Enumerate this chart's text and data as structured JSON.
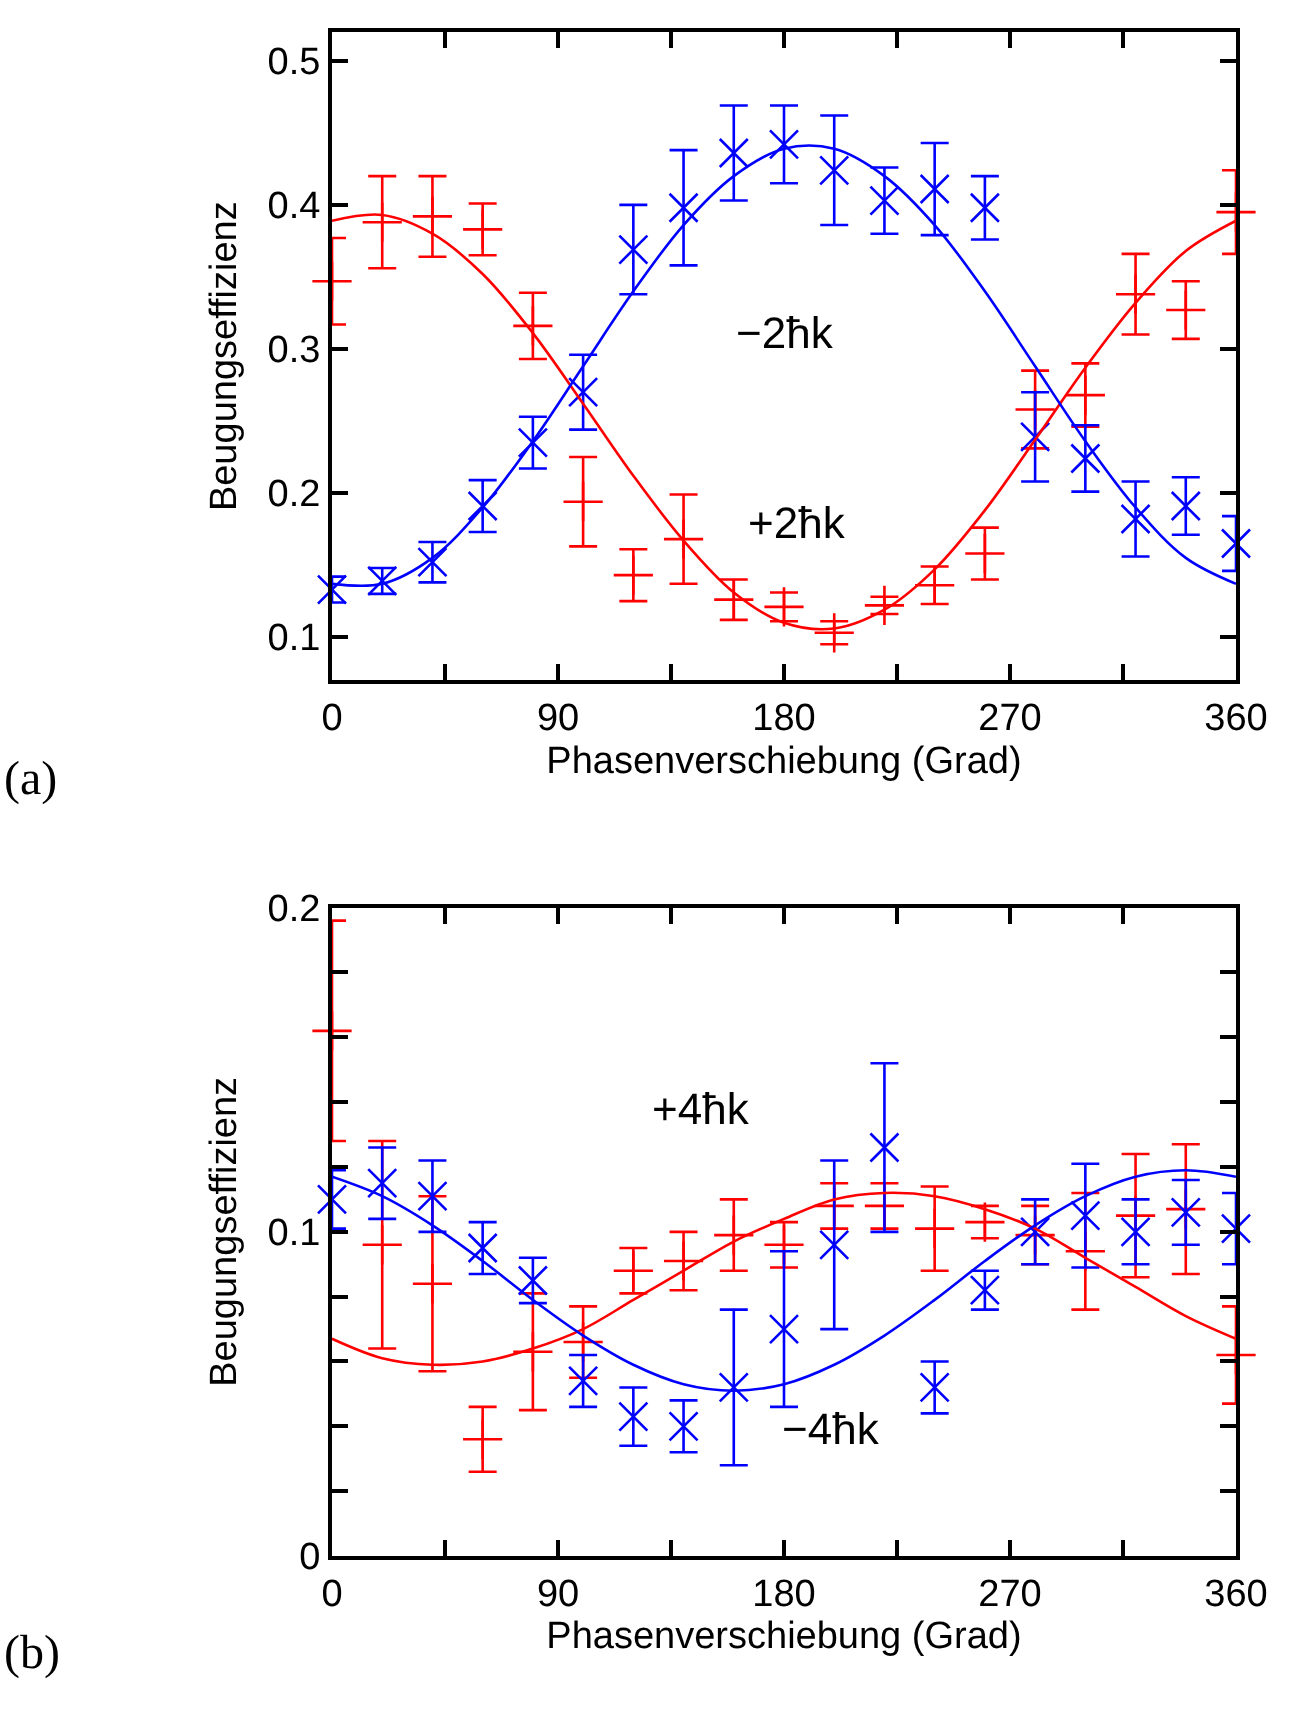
{
  "chart_data": [
    {
      "type": "scatter",
      "xlabel": "Phasenverschiebung (Grad)",
      "ylabel": "Beugungseffizienz",
      "annotations": [
        "(a)",
        "−2ħk",
        "+2ħk"
      ],
      "x": [
        0,
        20,
        40,
        60,
        80,
        100,
        120,
        140,
        160,
        180,
        200,
        220,
        240,
        260,
        280,
        300,
        320,
        340,
        360
      ],
      "xlim": [
        0,
        360
      ],
      "xticks": [
        0,
        {
          "value": 45,
          "label": null
        },
        90,
        {
          "value": 135,
          "label": null
        },
        180,
        {
          "value": 225,
          "label": null
        },
        270,
        {
          "value": 315,
          "label": null
        },
        360
      ],
      "ylim": [
        0.07,
        0.52
      ],
      "yticks": [
        0.1,
        0.2,
        0.3,
        0.4,
        0.5
      ],
      "series": [
        {
          "color": "#ff0000",
          "marker": "cross",
          "values": [
            0.347,
            0.388,
            0.392,
            0.383,
            0.316,
            0.194,
            0.143,
            0.168,
            0.126,
            0.121,
            0.103,
            0.122,
            0.136,
            0.158,
            0.258,
            0.268,
            0.338,
            0.327,
            0.395
          ],
          "errors": [
            0.03,
            0.032,
            0.028,
            0.018,
            0.023,
            0.031,
            0.018,
            0.031,
            0.014,
            0.01,
            0.008,
            0.006,
            0.013,
            0.018,
            0.027,
            0.022,
            0.028,
            0.02,
            0.029
          ]
        },
        {
          "color": "#0000ff",
          "marker": "x",
          "values": [
            0.133,
            0.139,
            0.152,
            0.191,
            0.235,
            0.27,
            0.369,
            0.398,
            0.436,
            0.442,
            0.424,
            0.403,
            0.411,
            0.398,
            0.239,
            0.224,
            0.182,
            0.191,
            0.165
          ],
          "errors": [
            0.009,
            0.009,
            0.014,
            0.018,
            0.018,
            0.026,
            0.031,
            0.04,
            0.033,
            0.027,
            0.038,
            0.023,
            0.032,
            0.022,
            0.031,
            0.023,
            0.026,
            0.02,
            0.019
          ]
        },
        {
          "type": "line",
          "color": "#ff0000",
          "marker": "none",
          "values": [
            0.389,
            0.393,
            0.38,
            0.352,
            0.311,
            0.262,
            0.212,
            0.167,
            0.131,
            0.11,
            0.106,
            0.119,
            0.147,
            0.188,
            0.237,
            0.287,
            0.332,
            0.368,
            0.389
          ]
        },
        {
          "type": "line",
          "color": "#0000ff",
          "marker": "none",
          "values": [
            0.137,
            0.137,
            0.155,
            0.19,
            0.236,
            0.288,
            0.34,
            0.386,
            0.42,
            0.439,
            0.439,
            0.42,
            0.386,
            0.34,
            0.288,
            0.236,
            0.19,
            0.155,
            0.137
          ]
        }
      ]
    },
    {
      "type": "scatter",
      "xlabel": "Phasenverschiebung (Grad)",
      "ylabel": "Beugungseffizienz",
      "annotations": [
        "(b)",
        "+4ħk",
        "−4ħk"
      ],
      "x": [
        0,
        20,
        40,
        60,
        80,
        100,
        120,
        140,
        160,
        180,
        200,
        220,
        240,
        260,
        280,
        300,
        320,
        340,
        360
      ],
      "xlim": [
        0,
        360
      ],
      "xticks": [
        0,
        {
          "value": 45,
          "label": null
        },
        90,
        {
          "value": 135,
          "label": null
        },
        180,
        {
          "value": 225,
          "label": null
        },
        270,
        {
          "value": 315,
          "label": null
        },
        360
      ],
      "ylim": [
        0,
        0.2
      ],
      "yticks": [
        0,
        {
          "value": 0.02,
          "label": null
        },
        {
          "value": 0.04,
          "label": null
        },
        {
          "value": 0.06,
          "label": null
        },
        {
          "value": 0.08,
          "label": null
        },
        0.1,
        {
          "value": 0.12,
          "label": null
        },
        {
          "value": 0.14,
          "label": null
        },
        {
          "value": 0.16,
          "label": null
        },
        {
          "value": 0.18,
          "label": null
        },
        0.2
      ],
      "series": [
        {
          "color": "#ff0000",
          "marker": "cross",
          "values": [
            0.162,
            0.096,
            0.084,
            0.036,
            0.063,
            0.066,
            0.088,
            0.091,
            0.099,
            0.096,
            0.108,
            0.108,
            0.101,
            0.103,
            0.099,
            0.094,
            0.105,
            0.107,
            0.062
          ],
          "errors": [
            0.034,
            0.032,
            0.027,
            0.01,
            0.018,
            0.011,
            0.007,
            0.009,
            0.011,
            0.007,
            0.007,
            0.007,
            0.013,
            0.005,
            0.009,
            0.018,
            0.019,
            0.02,
            0.015
          ]
        },
        {
          "color": "#0000ff",
          "marker": "x",
          "values": [
            0.11,
            0.115,
            0.111,
            0.095,
            0.085,
            0.054,
            0.043,
            0.04,
            0.052,
            0.07,
            0.096,
            0.126,
            0.052,
            0.082,
            0.1,
            0.105,
            0.1,
            0.106,
            0.101
          ],
          "errors": [
            0.009,
            0.011,
            0.011,
            0.008,
            0.007,
            0.008,
            0.009,
            0.008,
            0.024,
            0.024,
            0.026,
            0.026,
            0.008,
            0.006,
            0.01,
            0.016,
            0.01,
            0.01,
            0.011
          ]
        },
        {
          "type": "line",
          "color": "#ff0000",
          "marker": "none",
          "values": [
            0.067,
            0.061,
            0.059,
            0.06,
            0.064,
            0.07,
            0.079,
            0.088,
            0.097,
            0.104,
            0.11,
            0.112,
            0.111,
            0.107,
            0.101,
            0.092,
            0.083,
            0.074,
            0.067
          ]
        },
        {
          "type": "line",
          "color": "#0000ff",
          "marker": "none",
          "values": [
            0.117,
            0.111,
            0.102,
            0.091,
            0.079,
            0.068,
            0.059,
            0.053,
            0.051,
            0.053,
            0.059,
            0.068,
            0.079,
            0.091,
            0.102,
            0.111,
            0.117,
            0.119,
            0.117
          ]
        }
      ]
    }
  ]
}
